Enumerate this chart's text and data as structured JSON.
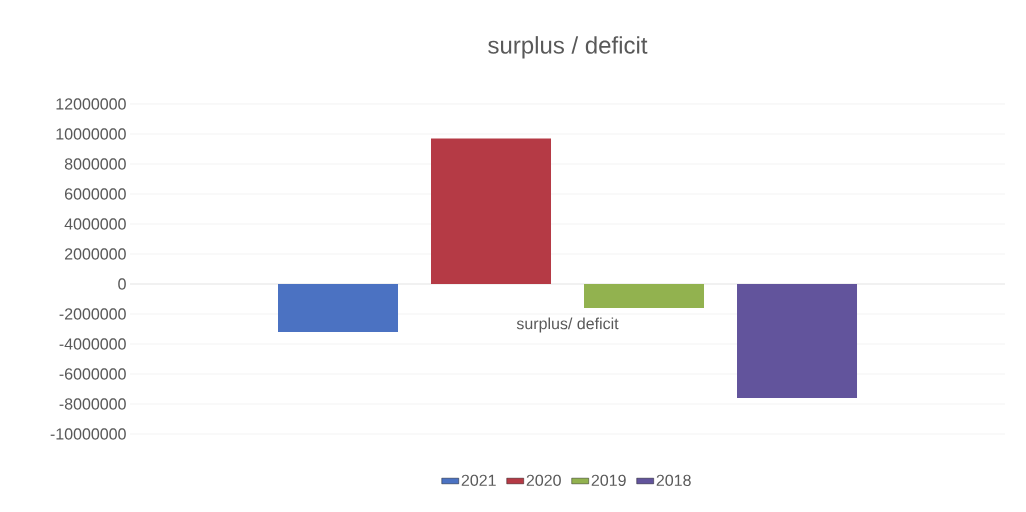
{
  "chart_data": {
    "type": "bar",
    "title": "surplus / deficit",
    "categories": [
      "surplus/ deficit"
    ],
    "series": [
      {
        "name": "2021",
        "color": "#4b72c2",
        "values": [
          -3200000
        ]
      },
      {
        "name": "2020",
        "color": "#b53a45",
        "values": [
          9700000
        ]
      },
      {
        "name": "2019",
        "color": "#92b24f",
        "values": [
          -1600000
        ]
      },
      {
        "name": "2018",
        "color": "#62549c",
        "values": [
          -7600000
        ]
      }
    ],
    "ylim": [
      -10000000,
      12000000
    ],
    "yticks": [
      12000000,
      10000000,
      8000000,
      6000000,
      4000000,
      2000000,
      0,
      -2000000,
      -4000000,
      -6000000,
      -8000000,
      -10000000
    ],
    "grid": "y",
    "legend": "bottom"
  }
}
